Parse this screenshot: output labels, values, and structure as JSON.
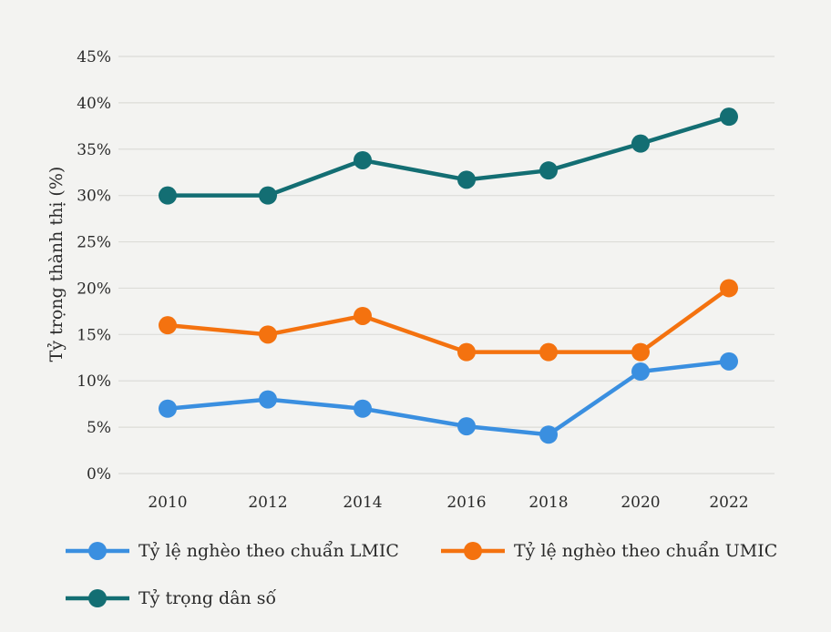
{
  "chart_data": {
    "type": "line",
    "title": "",
    "xlabel": "",
    "ylabel": "Tỷ trọng thành thị (%)",
    "x": [
      "2010",
      "2012",
      "2014",
      "2016",
      "2018",
      "2020",
      "2022"
    ],
    "ylim": [
      0,
      45
    ],
    "yticks": [
      "0%",
      "5%",
      "10%",
      "15%",
      "20%",
      "25%",
      "30%",
      "35%",
      "40%",
      "45%"
    ],
    "grid": true,
    "legend_position": "bottom",
    "series": [
      {
        "name": "Tỷ lệ nghèo theo chuẩn LMIC",
        "color": "#3a8fe0",
        "values": [
          7,
          8,
          7,
          5.1,
          4.2,
          11,
          12.1
        ]
      },
      {
        "name": "Tỷ lệ nghèo theo chuẩn UMIC",
        "color": "#f4720f",
        "values": [
          16,
          15,
          17,
          13.1,
          13.1,
          13.1,
          20
        ]
      },
      {
        "name": "Tỷ trọng dân số",
        "color": "#136e73",
        "values": [
          30,
          30,
          33.8,
          31.7,
          32.7,
          35.6,
          38.5
        ]
      }
    ]
  }
}
